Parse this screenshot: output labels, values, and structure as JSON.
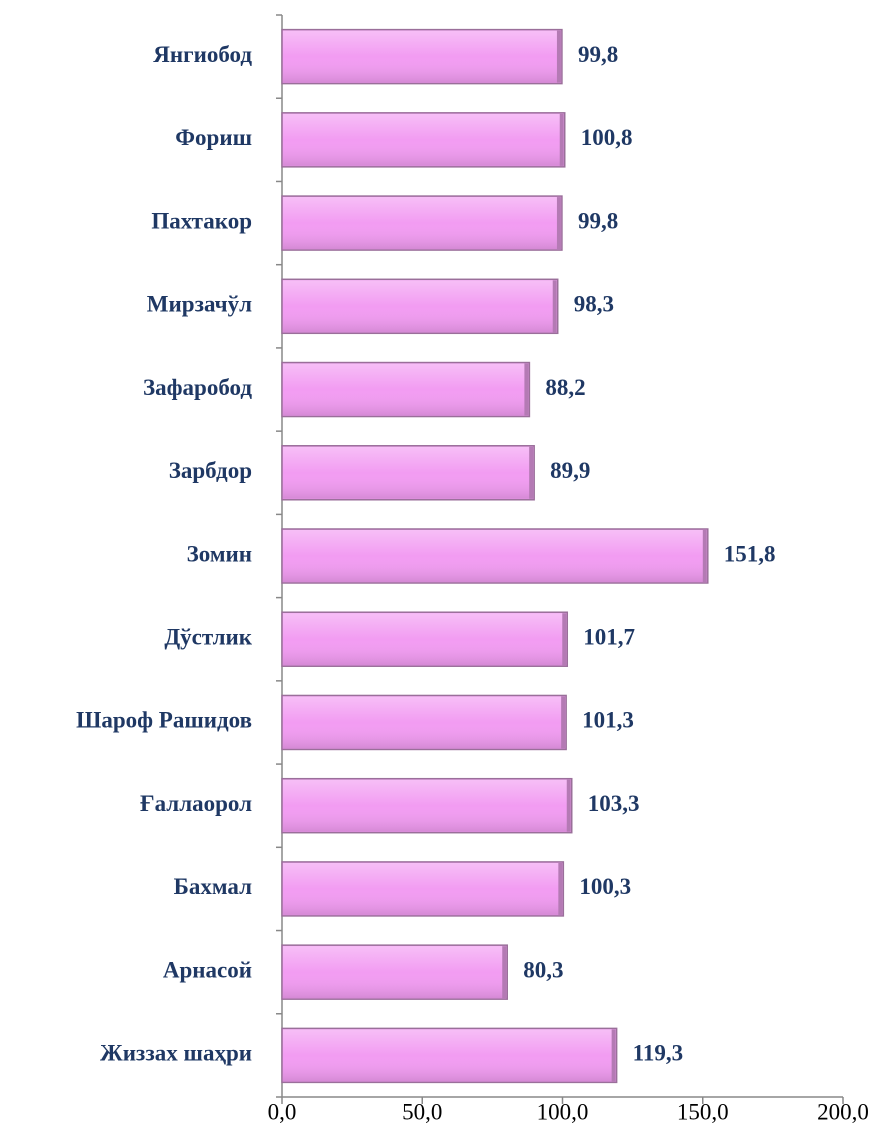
{
  "chart_data": {
    "type": "bar",
    "orientation": "horizontal",
    "categories": [
      "Янгиобод",
      "Фориш",
      "Пахтакор",
      "Мирзачўл",
      "Зафаробод",
      "Зарбдор",
      "Зомин",
      "Дўстлик",
      "Шароф Рашидов",
      "Ғаллаорол",
      "Бахмал",
      "Арнасой",
      "Жиззах шаҳри"
    ],
    "values": [
      99.8,
      100.8,
      99.8,
      98.3,
      88.2,
      89.9,
      151.8,
      101.7,
      101.3,
      103.3,
      100.3,
      80.3,
      119.3
    ],
    "value_labels": [
      "99,8",
      "100,8",
      "99,8",
      "98,3",
      "88,2",
      "89,9",
      "151,8",
      "101,7",
      "101,3",
      "103,3",
      "100,3",
      "80,3",
      "119,3"
    ],
    "color": "#f29cf2",
    "xlim": [
      0,
      200
    ],
    "xticks": [
      {
        "value": 0,
        "label": "0,0"
      },
      {
        "value": 50,
        "label": "50,0"
      },
      {
        "value": 100,
        "label": "100,0"
      },
      {
        "value": 150,
        "label": "150,0"
      },
      {
        "value": 200,
        "label": "200,0"
      }
    ],
    "grid": false
  }
}
